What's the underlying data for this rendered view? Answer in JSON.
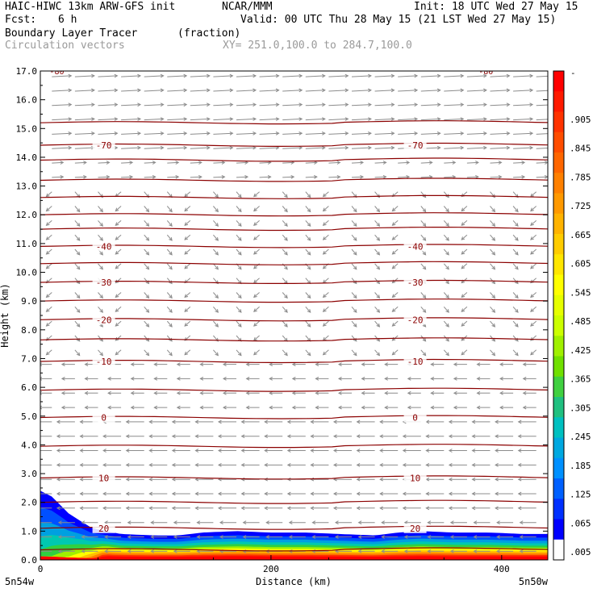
{
  "header": {
    "model": "HAIC-HIWC 13km ARW-GFS init",
    "org": "NCAR/MMM",
    "init": "Init: 18 UTC Wed 27 May 15",
    "fcst_label": "Fcst:",
    "fcst_value": "6 h",
    "valid": "Valid: 00 UTC Thu 28 May 15 (21 LST Wed 27 May 15)",
    "field": "Boundary Layer Tracer",
    "units": "(fraction)",
    "vectors": "Circulation vectors",
    "xy": "XY= 251.0,100.0 to 284.7,100.0"
  },
  "colors": {
    "contour": "#8b0000",
    "vector": "#8c8c8c"
  },
  "chart_data": {
    "type": "heatmap",
    "title": "Boundary Layer Tracer (fraction)",
    "xlabel": "Distance (km)",
    "ylabel": "Height (km)",
    "xlim": [
      0,
      440
    ],
    "ylim": [
      0,
      17
    ],
    "x_ticks": [
      "0",
      "200",
      "400"
    ],
    "x_tick_values": [
      0,
      200,
      400
    ],
    "x_end_labels": [
      "5n54w",
      "5n50w"
    ],
    "y_ticks": [
      "0.0",
      "1.0",
      "2.0",
      "3.0",
      "4.0",
      "5.0",
      "6.0",
      "7.0",
      "8.0",
      "9.0",
      "10.0",
      "11.0",
      "12.0",
      "13.0",
      "14.0",
      "15.0",
      "16.0",
      "17.0"
    ],
    "y_tick_values": [
      0,
      1,
      2,
      3,
      4,
      5,
      6,
      7,
      8,
      9,
      10,
      11,
      12,
      13,
      14,
      15,
      16,
      17
    ],
    "colorbar": {
      "labels": [
        ".905",
        ".845",
        ".785",
        ".725",
        ".665",
        ".605",
        ".545",
        ".485",
        ".425",
        ".365",
        ".305",
        ".245",
        ".185",
        ".125",
        ".065",
        ".005"
      ],
      "top_label": "-",
      "colors": [
        "#ff0000",
        "#ff1a00",
        "#ff3300",
        "#ff4d00",
        "#ff6600",
        "#ff8000",
        "#ff9900",
        "#ffb300",
        "#ffcc00",
        "#ffe600",
        "#ffff00",
        "#e6ff00",
        "#ccff00",
        "#a0f000",
        "#70e000",
        "#40d040",
        "#20c080",
        "#00c0c0",
        "#00a8e0",
        "#0090ff",
        "#0060ff",
        "#0030ff",
        "#0000ff",
        "#ffffff"
      ]
    },
    "temperature_contours": [
      {
        "label": "-70",
        "height_km": 14.42
      },
      {
        "label": "-40",
        "height_km": 10.9
      },
      {
        "label": "-30",
        "height_km": 9.65
      },
      {
        "label": "-20",
        "height_km": 8.35
      },
      {
        "label": "-10",
        "height_km": 6.9
      },
      {
        "label": "0",
        "height_km": 4.95
      },
      {
        "label": "10",
        "height_km": 2.85
      },
      {
        "label": "20",
        "height_km": 1.1
      }
    ],
    "other_contour_heights_km": [
      15.2,
      13.9,
      13.2,
      12.6,
      12.0,
      11.5,
      10.3,
      9.0,
      7.65,
      5.9,
      3.95,
      2.0,
      0.35
    ],
    "top_corner_labels": [
      "-80",
      "-80"
    ],
    "boundary_layer_top_km": [
      2.4,
      2.2,
      1.6,
      1.1,
      0.9,
      0.85,
      0.85,
      0.95,
      1.0,
      0.95,
      0.95,
      0.9,
      0.85,
      0.95,
      1.0,
      0.95,
      0.95,
      0.9,
      0.9
    ],
    "boundary_layer_x_km": [
      0,
      10,
      25,
      45,
      70,
      100,
      120,
      140,
      170,
      200,
      230,
      260,
      290,
      310,
      330,
      360,
      390,
      420,
      440
    ]
  }
}
